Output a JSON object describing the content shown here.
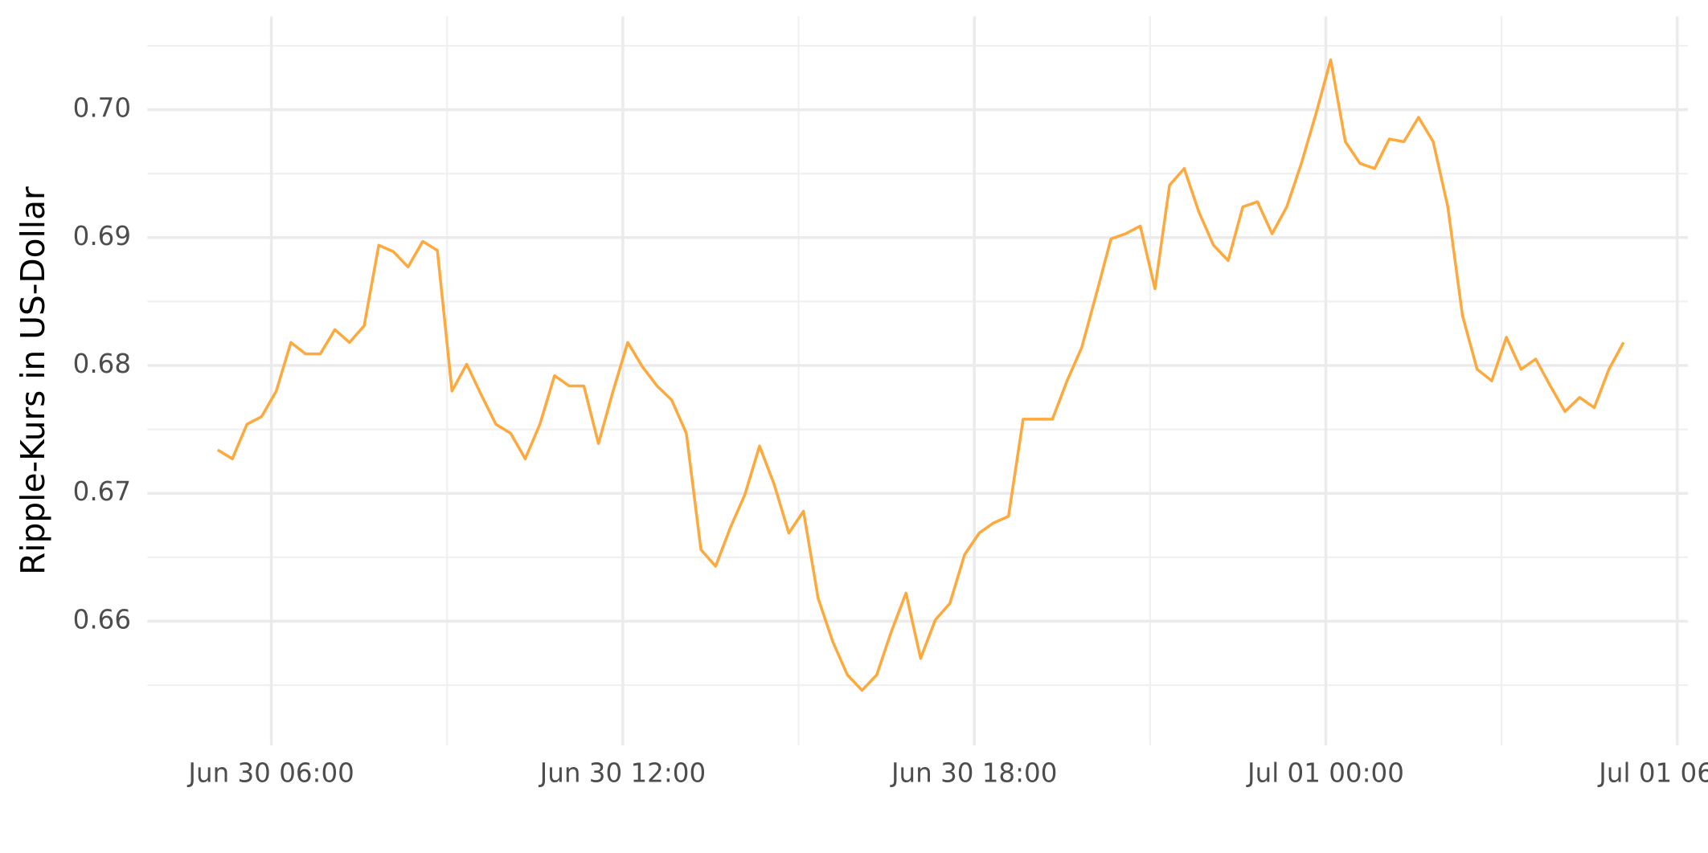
{
  "chart_data": {
    "type": "line",
    "y_label": "Ripple-Kurs in US-Dollar",
    "color": "#ffa83c",
    "grid": true,
    "xlim": [
      "Jun 30 03:53",
      "Jul 01 06:11"
    ],
    "xticks": [
      "Jun 30 06:00",
      "Jun 30 12:00",
      "Jun 30 18:00",
      "Jul 01 00:00",
      "Jul 01 06:00"
    ],
    "xminor": [
      "Jun 30 09:00",
      "Jun 30 15:00",
      "Jun 30 21:00",
      "Jul 01 03:00"
    ],
    "ylim": [
      0.6503,
      0.7073
    ],
    "yticks": [
      {
        "value": 0.66,
        "label": "0.66"
      },
      {
        "value": 0.67,
        "label": "0.67"
      },
      {
        "value": 0.68,
        "label": "0.68"
      },
      {
        "value": 0.69,
        "label": "0.69"
      },
      {
        "value": 0.7,
        "label": "0.70"
      }
    ],
    "yminor": [
      0.655,
      0.665,
      0.675,
      0.685,
      0.695,
      0.705
    ],
    "x": [
      "Jun 30 05:05",
      "Jun 30 05:20",
      "Jun 30 05:35",
      "Jun 30 05:50",
      "Jun 30 06:05",
      "Jun 30 06:20",
      "Jun 30 06:35",
      "Jun 30 06:50",
      "Jun 30 07:05",
      "Jun 30 07:20",
      "Jun 30 07:35",
      "Jun 30 07:50",
      "Jun 30 08:05",
      "Jun 30 08:20",
      "Jun 30 08:35",
      "Jun 30 08:50",
      "Jun 30 09:05",
      "Jun 30 09:20",
      "Jun 30 09:35",
      "Jun 30 09:50",
      "Jun 30 10:05",
      "Jun 30 10:20",
      "Jun 30 10:35",
      "Jun 30 10:50",
      "Jun 30 11:05",
      "Jun 30 11:20",
      "Jun 30 11:35",
      "Jun 30 11:50",
      "Jun 30 12:05",
      "Jun 30 12:20",
      "Jun 30 12:35",
      "Jun 30 12:50",
      "Jun 30 13:05",
      "Jun 30 13:20",
      "Jun 30 13:35",
      "Jun 30 13:50",
      "Jun 30 14:05",
      "Jun 30 14:20",
      "Jun 30 14:35",
      "Jun 30 14:50",
      "Jun 30 15:05",
      "Jun 30 15:20",
      "Jun 30 15:35",
      "Jun 30 15:50",
      "Jun 30 16:05",
      "Jun 30 16:20",
      "Jun 30 16:35",
      "Jun 30 16:50",
      "Jun 30 17:05",
      "Jun 30 17:20",
      "Jun 30 17:35",
      "Jun 30 17:50",
      "Jun 30 18:05",
      "Jun 30 18:20",
      "Jun 30 18:35",
      "Jun 30 18:50",
      "Jun 30 19:05",
      "Jun 30 19:20",
      "Jun 30 19:35",
      "Jun 30 19:50",
      "Jun 30 20:05",
      "Jun 30 20:20",
      "Jun 30 20:35",
      "Jun 30 20:50",
      "Jun 30 21:05",
      "Jun 30 21:20",
      "Jun 30 21:35",
      "Jun 30 21:50",
      "Jun 30 22:05",
      "Jun 30 22:20",
      "Jun 30 22:35",
      "Jun 30 22:50",
      "Jun 30 23:05",
      "Jun 30 23:20",
      "Jun 30 23:35",
      "Jun 30 23:50",
      "Jul 01 00:05",
      "Jul 01 00:20",
      "Jul 01 00:35",
      "Jul 01 00:50",
      "Jul 01 01:05",
      "Jul 01 01:20",
      "Jul 01 01:35",
      "Jul 01 01:50",
      "Jul 01 02:05",
      "Jul 01 02:20",
      "Jul 01 02:35",
      "Jul 01 02:50",
      "Jul 01 03:05",
      "Jul 01 03:20",
      "Jul 01 03:35",
      "Jul 01 03:50",
      "Jul 01 04:05",
      "Jul 01 04:20",
      "Jul 01 04:35",
      "Jul 01 04:50",
      "Jul 01 05:05"
    ],
    "values": [
      0.6734,
      0.6727,
      0.6754,
      0.676,
      0.678,
      0.6818,
      0.6809,
      0.6809,
      0.6828,
      0.6818,
      0.6831,
      0.6894,
      0.6889,
      0.6877,
      0.6897,
      0.689,
      0.678,
      0.6801,
      0.6777,
      0.6754,
      0.6747,
      0.6727,
      0.6754,
      0.6792,
      0.6784,
      0.6784,
      0.6739,
      0.678,
      0.6818,
      0.6799,
      0.6784,
      0.6773,
      0.6747,
      0.6656,
      0.6643,
      0.6673,
      0.6699,
      0.6737,
      0.6707,
      0.6669,
      0.6686,
      0.6618,
      0.6584,
      0.6558,
      0.6546,
      0.6558,
      0.6592,
      0.6622,
      0.6571,
      0.6601,
      0.6614,
      0.6652,
      0.6669,
      0.6677,
      0.6682,
      0.6758,
      0.6758,
      0.6758,
      0.6788,
      0.6814,
      0.6856,
      0.6899,
      0.6903,
      0.6909,
      0.686,
      0.6941,
      0.6954,
      0.692,
      0.6894,
      0.6882,
      0.6924,
      0.6928,
      0.6903,
      0.6924,
      0.6958,
      0.6997,
      0.7039,
      0.6975,
      0.6958,
      0.6954,
      0.6977,
      0.6975,
      0.6994,
      0.6975,
      0.6924,
      0.6839,
      0.6797,
      0.6788,
      0.6822,
      0.6797,
      0.6805,
      0.6784,
      0.6764,
      0.6775,
      0.6767,
      0.6797,
      0.6818
    ]
  }
}
